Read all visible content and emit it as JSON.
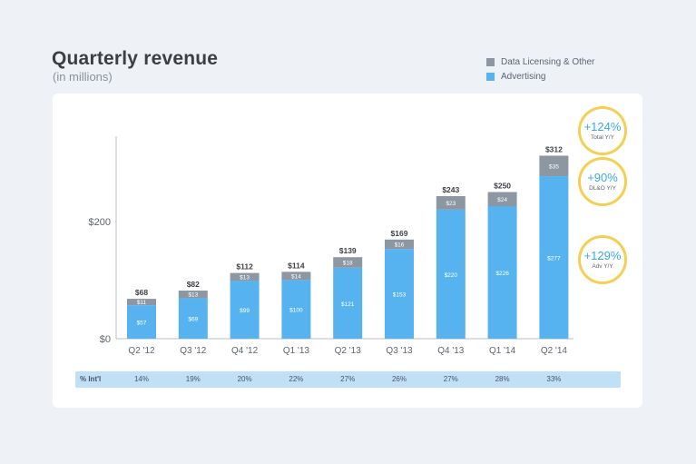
{
  "title": "Quarterly revenue",
  "subtitle": "(in millions)",
  "colors": {
    "advertising": "#56b3ef",
    "licensing": "#8d97a2",
    "badge_ring": "#f5cf55",
    "badge_text": "#3ea8e5"
  },
  "legend": [
    {
      "label": "Data Licensing & Other",
      "color": "#8d97a2"
    },
    {
      "label": "Advertising",
      "color": "#56b3ef"
    }
  ],
  "chart_data": {
    "type": "bar",
    "stacked": true,
    "categories": [
      "Q2 '12",
      "Q3 '12",
      "Q4 '12",
      "Q1 '13",
      "Q2 '13",
      "Q3 '13",
      "Q4 '13",
      "Q1 '14",
      "Q2 '14"
    ],
    "series": [
      {
        "name": "Advertising",
        "values": [
          57,
          69,
          99,
          100,
          121,
          153,
          220,
          226,
          277
        ]
      },
      {
        "name": "Data Licensing & Other",
        "values": [
          11,
          13,
          13,
          14,
          18,
          16,
          23,
          24,
          35
        ]
      }
    ],
    "totals": [
      "$68",
      "$82",
      "$112",
      "$114",
      "$139",
      "$169",
      "$243",
      "$250",
      "$312"
    ],
    "advertising_labels": [
      "$57",
      "$69",
      "$99",
      "$100",
      "$121",
      "$153",
      "$220",
      "$226",
      "$277"
    ],
    "licensing_labels": [
      "$11",
      "$13",
      "$13",
      "$14",
      "$18",
      "$16",
      "$23",
      "$24",
      "$35"
    ],
    "y_ticks": [
      0,
      200
    ],
    "y_tick_labels": [
      "$0",
      "$200"
    ],
    "ylim": [
      0,
      340
    ]
  },
  "intl": {
    "label": "% Int'l",
    "values": [
      "14%",
      "19%",
      "20%",
      "22%",
      "27%",
      "26%",
      "27%",
      "28%",
      "33%"
    ]
  },
  "badges": [
    {
      "value": "+124%",
      "label": "Total Y/Y"
    },
    {
      "value": "+90%",
      "label": "DL&O Y/Y"
    },
    {
      "value": "+129%",
      "label": "Adv Y/Y"
    }
  ]
}
